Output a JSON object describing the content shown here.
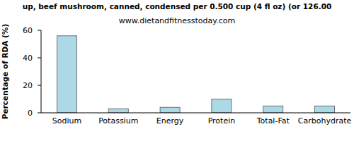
{
  "chart_data": {
    "type": "bar",
    "title": "up, beef mushroom, canned, condensed per 0.500 cup (4 fl oz) (or 126.00",
    "subtitle": "www.dietandfitnesstoday.com",
    "y_label": "Percentage of RDA (%)",
    "categories": [
      "Sodium",
      "Potassium",
      "Energy",
      "Protein",
      "Total-Fat",
      "Carbohydrate"
    ],
    "values": [
      56,
      3,
      4,
      10,
      5,
      5
    ],
    "color": "#add8e6",
    "ylim": [
      0,
      60
    ],
    "yticks": [
      0,
      20,
      40,
      60
    ],
    "grid": false
  }
}
